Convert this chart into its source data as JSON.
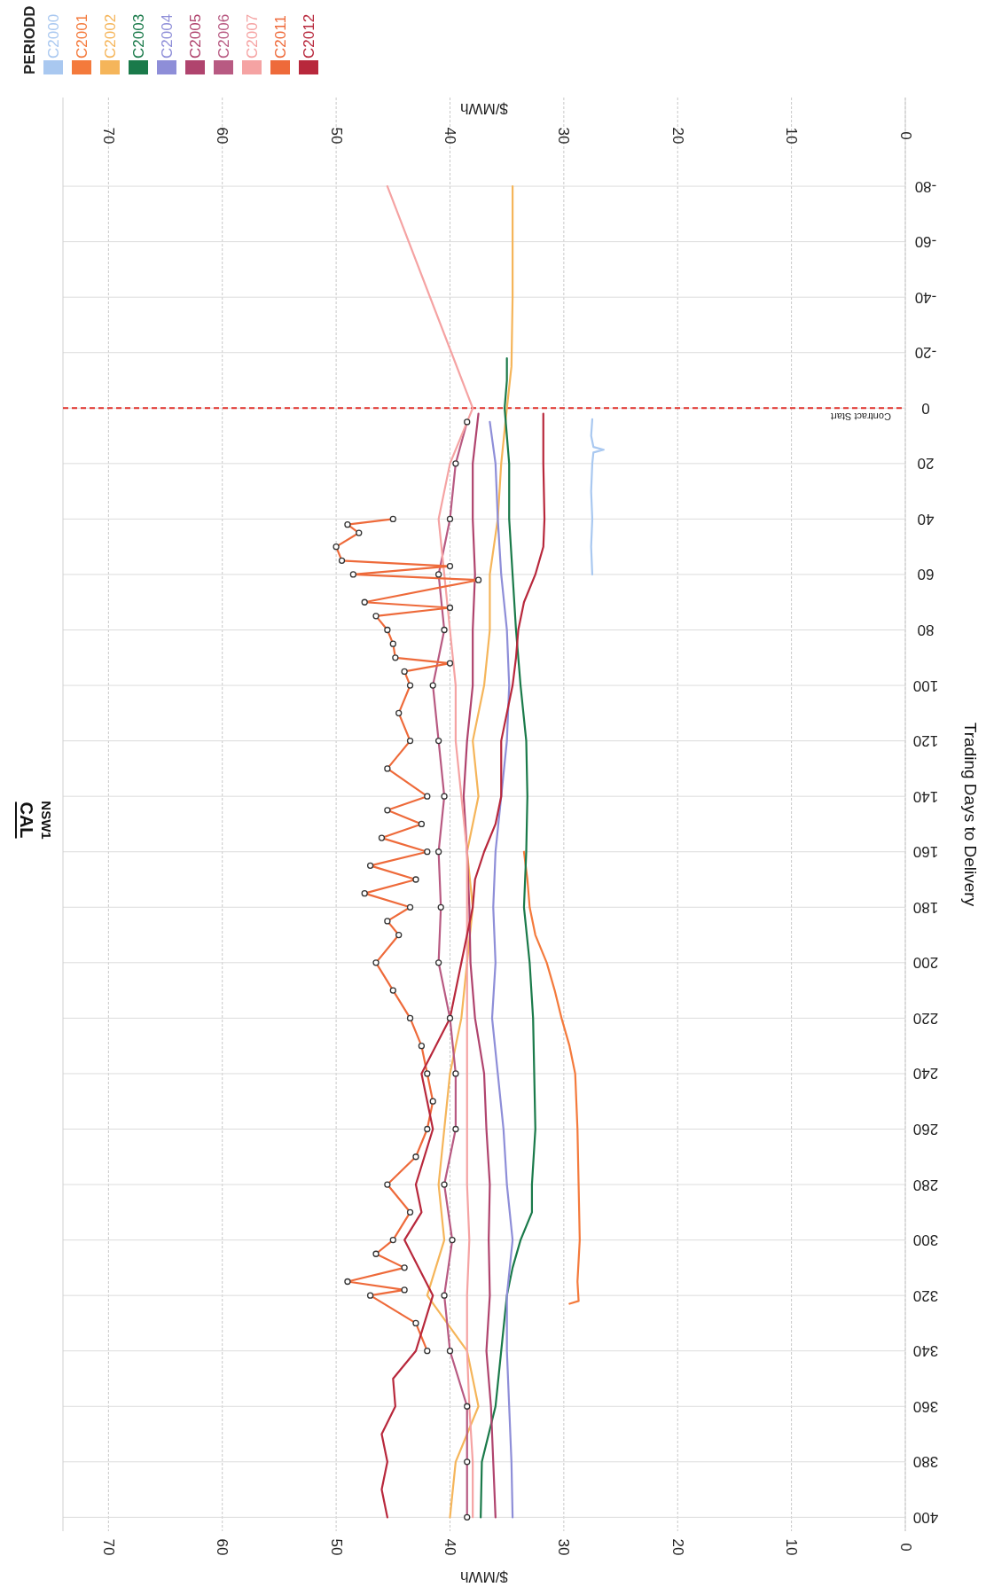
{
  "chart_data": {
    "type": "line",
    "title": "CAL",
    "subtitle": "NSW1",
    "xlabel": "$/MWh",
    "ylabel": "Trading Days to Delivery",
    "legend_title": "PERIODD",
    "legend": "top left",
    "grid": true,
    "xlim": [
      74,
      0
    ],
    "xticks": [
      0,
      10,
      20,
      30,
      40,
      50,
      60,
      70
    ],
    "x2lim": [
      74,
      0
    ],
    "x2ticks": [
      0,
      10,
      20,
      30,
      40,
      50,
      60,
      70
    ],
    "x2label": "$/MWh",
    "ylim": [
      405,
      -112
    ],
    "yticks": [
      -80,
      -60,
      -40,
      -20,
      0,
      20,
      40,
      60,
      80,
      100,
      120,
      140,
      160,
      180,
      200,
      220,
      240,
      260,
      280,
      300,
      320,
      340,
      360,
      380,
      400
    ],
    "ref_lines": [
      {
        "axis": "y",
        "value": 0,
        "label": "Contract Start",
        "color": "#e0302a",
        "line_style": "dashed"
      }
    ],
    "series": [
      {
        "name": "C2000",
        "color": "#a9c8f0",
        "values": [
          4,
          10,
          14,
          15,
          16,
          20,
          30,
          40,
          50,
          60
        ],
        "x": [
          27.5,
          27.6,
          27.4,
          26.5,
          27.4,
          27.5,
          27.6,
          27.5,
          27.6,
          27.5
        ]
      },
      {
        "name": "C2001",
        "color": "#f47a3c",
        "values": [
          160,
          170,
          180,
          190,
          200,
          210,
          220,
          230,
          240,
          260,
          280,
          300,
          315,
          322,
          323
        ],
        "x": [
          33.5,
          33.2,
          33,
          32.5,
          31.5,
          30.8,
          30.2,
          29.5,
          29,
          28.8,
          28.7,
          28.6,
          28.8,
          28.7,
          29.5
        ]
      },
      {
        "name": "C2002",
        "color": "#f5b55a",
        "values": [
          -80,
          -40,
          -15,
          0,
          20,
          40,
          60,
          80,
          100,
          120,
          140,
          160,
          180,
          200,
          220,
          240,
          260,
          280,
          300,
          320,
          340,
          360,
          380,
          400
        ],
        "x": [
          34.5,
          34.5,
          34.6,
          35,
          35.5,
          35.8,
          36.5,
          36.5,
          37,
          38,
          37.5,
          38.5,
          38,
          38.5,
          39,
          40,
          40.5,
          41,
          40.5,
          42,
          38.5,
          37.5,
          39.5,
          40
        ]
      },
      {
        "name": "C2003",
        "color": "#1a7a4a",
        "values": [
          -18,
          -10,
          0,
          20,
          40,
          60,
          80,
          100,
          120,
          140,
          160,
          180,
          200,
          220,
          240,
          260,
          280,
          290,
          300,
          310,
          320,
          340,
          360,
          380,
          400
        ],
        "x": [
          35,
          35,
          35.2,
          34.8,
          34.8,
          34.5,
          34.2,
          33.8,
          33.3,
          33.2,
          33.3,
          33.5,
          33,
          32.7,
          32.6,
          32.5,
          32.8,
          32.8,
          33.8,
          34.5,
          35,
          35.5,
          36,
          37.2,
          37.3
        ]
      },
      {
        "name": "C2004",
        "color": "#8e8ed8",
        "values": [
          5,
          20,
          40,
          60,
          80,
          100,
          120,
          140,
          160,
          180,
          200,
          220,
          240,
          260,
          280,
          300,
          320,
          340,
          360,
          380,
          400
        ],
        "x": [
          36.5,
          36,
          35.8,
          35.5,
          35,
          34.8,
          35,
          35.5,
          36,
          36.2,
          36,
          36.3,
          35.8,
          35.3,
          35,
          34.5,
          35,
          35,
          34.8,
          34.6,
          34.5
        ]
      },
      {
        "name": "C2005",
        "color": "#b0446e",
        "values": [
          2,
          20,
          40,
          60,
          80,
          100,
          120,
          140,
          160,
          180,
          200,
          220,
          240,
          260,
          280,
          300,
          320,
          340,
          360,
          380,
          400
        ],
        "x": [
          37.5,
          38,
          38,
          37.8,
          38,
          38,
          38.5,
          38.8,
          38.5,
          38.3,
          38.2,
          37.8,
          37,
          36.8,
          36.5,
          36.6,
          36.5,
          36.8,
          36.4,
          36.2,
          36
        ]
      },
      {
        "name": "C2006",
        "color": "#b85a82",
        "marker": "circle",
        "values": [
          5,
          20,
          40,
          60,
          80,
          100,
          120,
          140,
          160,
          180,
          200,
          220,
          240,
          260,
          280,
          300,
          320,
          340,
          360,
          380,
          400
        ],
        "x": [
          38.5,
          39.5,
          40,
          41,
          40.5,
          41.5,
          41,
          40.5,
          41,
          40.8,
          41,
          40,
          39.5,
          39.5,
          40.5,
          39.8,
          40.5,
          40,
          38.5,
          38.5,
          38.5
        ]
      },
      {
        "name": "C2007",
        "color": "#f5a3a3",
        "values": [
          -80,
          0,
          10,
          20,
          30,
          40,
          60,
          80,
          100,
          120,
          140,
          160,
          180,
          200,
          220,
          240,
          260,
          280,
          300,
          320,
          340,
          360,
          380,
          400
        ],
        "x": [
          45.5,
          38,
          39,
          40,
          40.5,
          41,
          40.5,
          40,
          39.5,
          39.5,
          39,
          38.5,
          38.5,
          38.5,
          38.5,
          38.5,
          38.5,
          38.5,
          38.3,
          38.5,
          38.5,
          38.3,
          38,
          38
        ]
      },
      {
        "name": "C2011",
        "color": "#ee6a3a",
        "marker": "circle",
        "values": [
          40,
          42,
          45,
          50,
          55,
          57,
          60,
          62,
          70,
          72,
          75,
          80,
          85,
          90,
          92,
          95,
          100,
          110,
          120,
          130,
          140,
          145,
          150,
          155,
          160,
          165,
          170,
          175,
          180,
          185,
          190,
          200,
          210,
          220,
          230,
          240,
          250,
          260,
          270,
          280,
          290,
          300,
          305,
          310,
          315,
          318,
          320,
          330,
          340
        ],
        "x": [
          45,
          49,
          48,
          50,
          49.5,
          40,
          48.5,
          37.5,
          47.5,
          40,
          46.5,
          45.5,
          45,
          44.8,
          40,
          44,
          43.5,
          44.5,
          43.5,
          45.5,
          42,
          45.5,
          42.5,
          46,
          42,
          47,
          43,
          47.5,
          43.5,
          45.5,
          44.5,
          46.5,
          45,
          43.5,
          42.5,
          42,
          41.5,
          42,
          43,
          45.5,
          43.5,
          45,
          46.5,
          44,
          49,
          44,
          47,
          43,
          42
        ]
      },
      {
        "name": "C2012",
        "color": "#b8283c",
        "values": [
          2,
          20,
          40,
          50,
          60,
          70,
          80,
          90,
          100,
          120,
          140,
          150,
          160,
          170,
          180,
          200,
          220,
          240,
          260,
          280,
          290,
          300,
          320,
          340,
          350,
          360,
          370,
          380,
          390,
          400
        ],
        "x": [
          31.8,
          31.8,
          31.7,
          31.8,
          32.5,
          33.5,
          34,
          34.2,
          34.5,
          35.5,
          35.5,
          36,
          37,
          37.8,
          38,
          39,
          40,
          42.5,
          41.5,
          43,
          42.5,
          44,
          41.5,
          43,
          45,
          44.8,
          46,
          45.5,
          46,
          45.5
        ]
      }
    ]
  }
}
